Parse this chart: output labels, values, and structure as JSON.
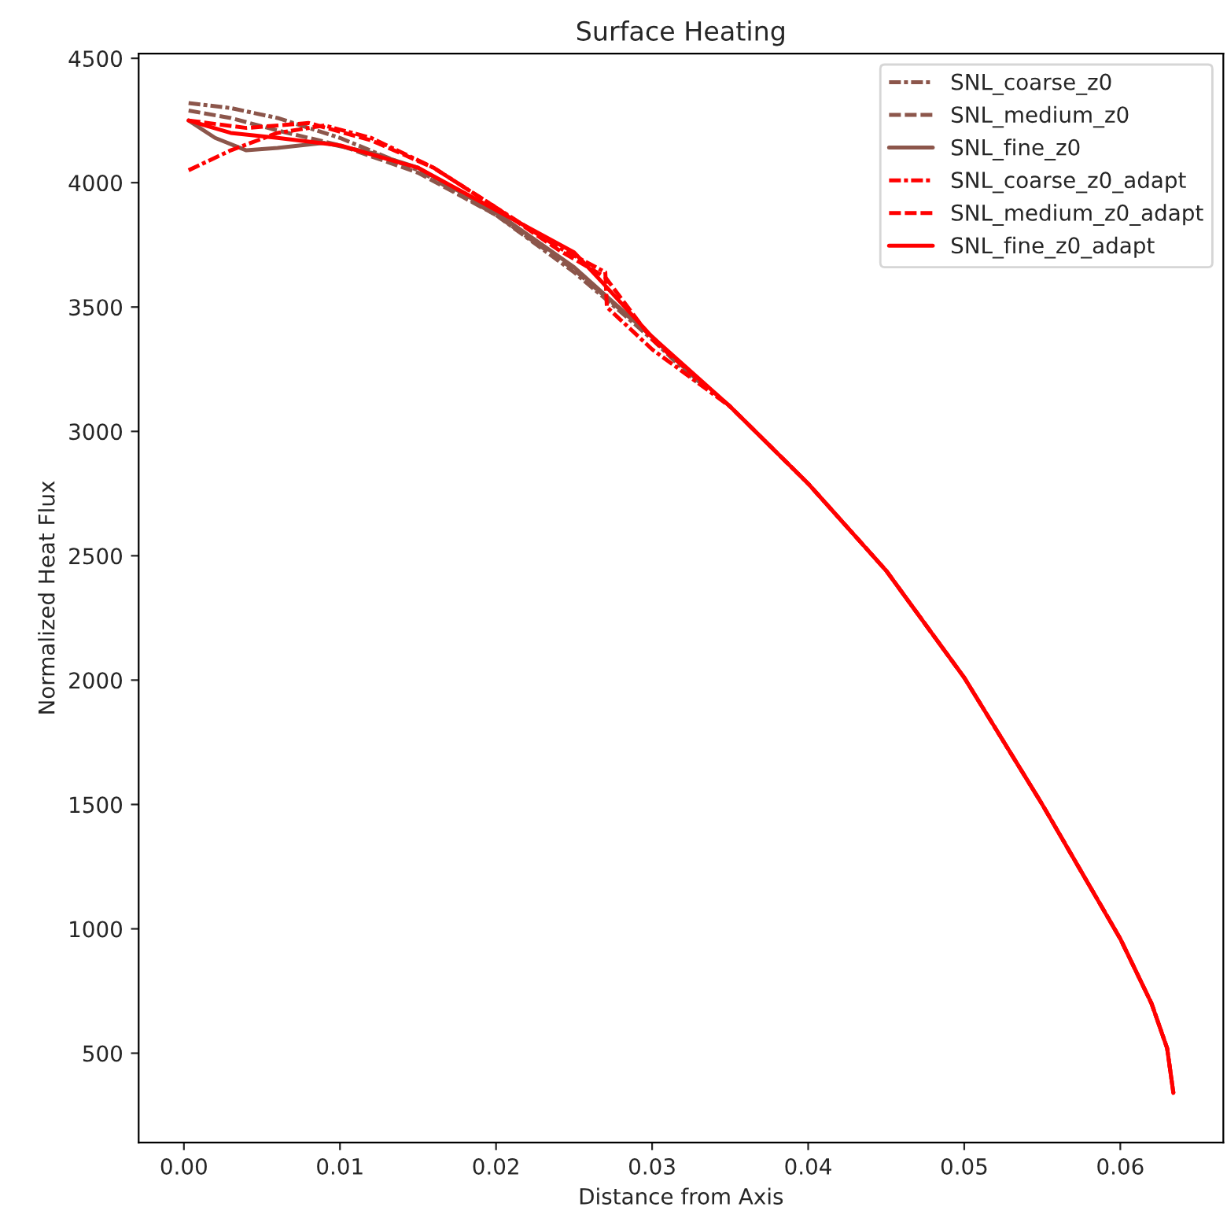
{
  "chart_data": {
    "type": "line",
    "title": "Surface Heating",
    "xlabel": "Distance from Axis",
    "ylabel": "Normalized Heat Flux",
    "xlim": [
      -0.0029,
      0.0666
    ],
    "ylim": [
      141,
      4519
    ],
    "xticks": [
      {
        "value": 0.0,
        "label": "0.00"
      },
      {
        "value": 0.01,
        "label": "0.01"
      },
      {
        "value": 0.02,
        "label": "0.02"
      },
      {
        "value": 0.03,
        "label": "0.03"
      },
      {
        "value": 0.04,
        "label": "0.04"
      },
      {
        "value": 0.05,
        "label": "0.05"
      },
      {
        "value": 0.06,
        "label": "0.06"
      }
    ],
    "yticks": [
      500,
      1000,
      1500,
      2000,
      2500,
      3000,
      3500,
      4000,
      4500
    ],
    "grid": false,
    "legend": "top right",
    "marker": "none",
    "series": [
      {
        "name": "SNL_coarse_z0",
        "color": "#8c564b",
        "line_style": "dashdot",
        "x": [
          0.0003,
          0.003,
          0.006,
          0.01,
          0.015,
          0.02,
          0.025,
          0.028,
          0.03,
          0.033
        ],
        "values": [
          4320,
          4300,
          4260,
          4180,
          4050,
          3870,
          3640,
          3480,
          3370,
          3190
        ]
      },
      {
        "name": "SNL_medium_z0",
        "color": "#8c564b",
        "line_style": "dashed",
        "x": [
          0.0003,
          0.003,
          0.006,
          0.01,
          0.015,
          0.02,
          0.025,
          0.03,
          0.033
        ],
        "values": [
          4290,
          4260,
          4210,
          4150,
          4040,
          3870,
          3650,
          3380,
          3200
        ]
      },
      {
        "name": "SNL_fine_z0",
        "color": "#8c564b",
        "line_style": "solid",
        "x": [
          0.0003,
          0.002,
          0.004,
          0.006,
          0.009,
          0.012,
          0.015,
          0.02,
          0.025,
          0.03,
          0.033
        ],
        "values": [
          4250,
          4180,
          4130,
          4140,
          4160,
          4120,
          4060,
          3880,
          3660,
          3380,
          3200
        ]
      },
      {
        "name": "SNL_coarse_z0_adapt",
        "color": "#ff0000",
        "line_style": "dashdot",
        "x": [
          0.0003,
          0.003,
          0.006,
          0.009,
          0.012,
          0.016,
          0.02,
          0.024,
          0.027,
          0.0271,
          0.03,
          0.035,
          0.04,
          0.045,
          0.05,
          0.055,
          0.06,
          0.062,
          0.063,
          0.0634
        ],
        "values": [
          4050,
          4130,
          4200,
          4230,
          4180,
          4060,
          3900,
          3740,
          3640,
          3500,
          3330,
          3100,
          2790,
          2440,
          2010,
          1500,
          960,
          700,
          520,
          340
        ]
      },
      {
        "name": "SNL_medium_z0_adapt",
        "color": "#ff0000",
        "line_style": "dashed",
        "x": [
          0.0003,
          0.004,
          0.008,
          0.012,
          0.016,
          0.02,
          0.024,
          0.027,
          0.03,
          0.035,
          0.04,
          0.045,
          0.05,
          0.055,
          0.06,
          0.062,
          0.063,
          0.0634
        ],
        "values": [
          4250,
          4220,
          4240,
          4170,
          4060,
          3900,
          3730,
          3620,
          3370,
          3100,
          2790,
          2440,
          2010,
          1500,
          960,
          700,
          520,
          340
        ]
      },
      {
        "name": "SNL_fine_z0_adapt",
        "color": "#ff0000",
        "line_style": "solid",
        "x": [
          0.0003,
          0.003,
          0.006,
          0.01,
          0.015,
          0.02,
          0.025,
          0.0265,
          0.03,
          0.035,
          0.04,
          0.045,
          0.05,
          0.055,
          0.06,
          0.062,
          0.063,
          0.0634
        ],
        "values": [
          4250,
          4200,
          4180,
          4150,
          4060,
          3890,
          3720,
          3620,
          3380,
          3100,
          2790,
          2440,
          2010,
          1500,
          960,
          700,
          520,
          340
        ]
      }
    ]
  }
}
